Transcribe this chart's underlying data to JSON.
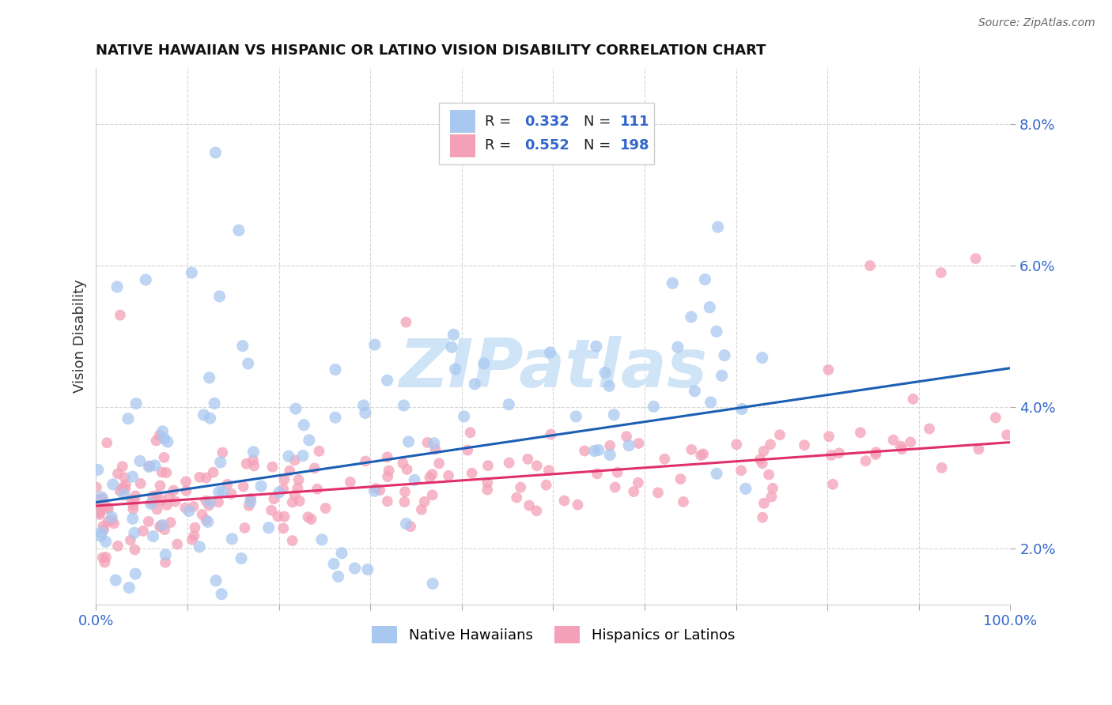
{
  "title": "NATIVE HAWAIIAN VS HISPANIC OR LATINO VISION DISABILITY CORRELATION CHART",
  "source": "Source: ZipAtlas.com",
  "ylabel": "Vision Disability",
  "color_blue": "#A8C8F0",
  "color_pink": "#F4A0B8",
  "line_blue": "#1A5FB4",
  "line_pink": "#E0306A",
  "watermark_text": "ZIPatlas",
  "watermark_color": "#D8E8F8",
  "legend_label_1": "Native Hawaiians",
  "legend_label_2": "Hispanics or Latinos",
  "title_color": "#111111",
  "source_color": "#666666",
  "tick_color": "#3366CC",
  "ylabel_color": "#333333",
  "grid_color": "#CCCCCC",
  "legend_r1": "0.332",
  "legend_n1": "111",
  "legend_r2": "0.552",
  "legend_n2": "198"
}
